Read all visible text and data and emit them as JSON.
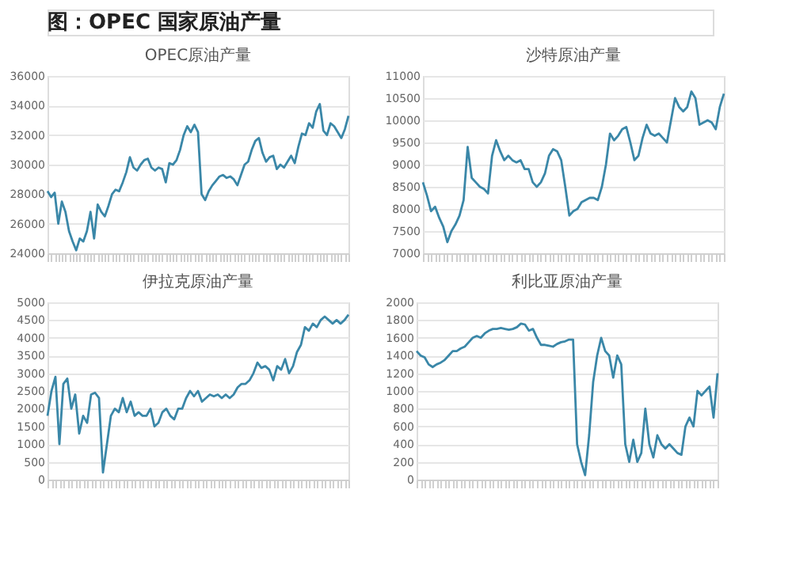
{
  "chart_data": [
    {
      "type": "other",
      "title": "图：OPEC 国家原油产量"
    },
    {
      "type": "line",
      "title": "OPEC原油产量",
      "tick_labels": "y",
      "grid": "y",
      "ylim": [
        24000,
        36000
      ],
      "yticks": [
        24000,
        26000,
        28000,
        30000,
        32000,
        34000,
        36000
      ],
      "categories": [
        null,
        null,
        null,
        null,
        null,
        null,
        null,
        null,
        null,
        null,
        null,
        null,
        null,
        null,
        null,
        null,
        null,
        null,
        null,
        null,
        null,
        null,
        null,
        null,
        null,
        null,
        null,
        null,
        null,
        null,
        null,
        null,
        null,
        null,
        null,
        null,
        null,
        null,
        null,
        null,
        null,
        null,
        null,
        null,
        null,
        null,
        null,
        null,
        null,
        null,
        null,
        null,
        null,
        null,
        null,
        null,
        null,
        null,
        null,
        null,
        null,
        null,
        null,
        null,
        null,
        null,
        null,
        null,
        null,
        null,
        null,
        null,
        null,
        null,
        null,
        null,
        null,
        null,
        null,
        null,
        null,
        null,
        null,
        null,
        null
      ],
      "series": [
        {
          "color": "#3a87a8",
          "values": [
            28200,
            27800,
            28100,
            26000,
            27500,
            26800,
            25500,
            24800,
            24200,
            25000,
            24800,
            25500,
            26800,
            25000,
            27300,
            26800,
            26500,
            27200,
            28000,
            28300,
            28200,
            28800,
            29500,
            30500,
            29800,
            29600,
            30000,
            30300,
            30400,
            29800,
            29600,
            29800,
            29700,
            28800,
            30100,
            30000,
            30300,
            31000,
            32000,
            32600,
            32200,
            32700,
            32200,
            28000,
            27600,
            28200,
            28600,
            28900,
            29200,
            29300,
            29100,
            29200,
            29000,
            28600,
            29300,
            30000,
            30200,
            31000,
            31600,
            31800,
            30800,
            30200,
            30500,
            30600,
            29700,
            30000,
            29800,
            30200,
            30600,
            30100,
            31200,
            32100,
            32000,
            32800,
            32500,
            33600,
            34100,
            32300,
            32000,
            32800,
            32600,
            32200,
            31800,
            32400,
            33300
          ]
        }
      ]
    },
    {
      "type": "line",
      "title": "沙特原油产量",
      "tick_labels": "y",
      "grid": "y",
      "ylim": [
        7000,
        11000
      ],
      "yticks": [
        7000,
        7500,
        8000,
        8500,
        9000,
        9500,
        10000,
        10500,
        11000
      ],
      "categories": [
        null,
        null,
        null,
        null,
        null,
        null,
        null,
        null,
        null,
        null,
        null,
        null,
        null,
        null,
        null,
        null,
        null,
        null,
        null,
        null,
        null,
        null,
        null,
        null,
        null,
        null,
        null,
        null,
        null,
        null,
        null,
        null,
        null,
        null,
        null,
        null,
        null,
        null,
        null,
        null,
        null,
        null,
        null,
        null,
        null,
        null,
        null,
        null,
        null,
        null,
        null,
        null,
        null,
        null,
        null,
        null,
        null,
        null,
        null,
        null,
        null,
        null,
        null,
        null,
        null,
        null,
        null,
        null,
        null,
        null,
        null,
        null,
        null,
        null,
        null
      ],
      "series": [
        {
          "color": "#3a87a8",
          "values": [
            8600,
            8300,
            7950,
            8050,
            7800,
            7600,
            7250,
            7500,
            7650,
            7850,
            8200,
            9400,
            8700,
            8600,
            8500,
            8450,
            8350,
            9200,
            9550,
            9300,
            9100,
            9200,
            9100,
            9050,
            9100,
            8900,
            8900,
            8600,
            8500,
            8600,
            8800,
            9200,
            9350,
            9300,
            9100,
            8500,
            7850,
            7950,
            8000,
            8150,
            8200,
            8250,
            8250,
            8200,
            8500,
            9000,
            9700,
            9550,
            9650,
            9800,
            9850,
            9500,
            9100,
            9200,
            9600,
            9900,
            9700,
            9650,
            9700,
            9600,
            9500,
            10000,
            10500,
            10300,
            10200,
            10300,
            10650,
            10500,
            9900,
            9950,
            10000,
            9950,
            9800,
            10300,
            10600
          ]
        }
      ]
    },
    {
      "type": "line",
      "title": "伊拉克原油产量",
      "tick_labels": "y",
      "grid": "y",
      "ylim": [
        0,
        5000
      ],
      "yticks": [
        0,
        500,
        1000,
        1500,
        2000,
        2500,
        3000,
        3500,
        4000,
        4500,
        5000
      ],
      "categories": [
        null,
        null,
        null,
        null,
        null,
        null,
        null,
        null,
        null,
        null,
        null,
        null,
        null,
        null,
        null,
        null,
        null,
        null,
        null,
        null,
        null,
        null,
        null,
        null,
        null,
        null,
        null,
        null,
        null,
        null,
        null,
        null,
        null,
        null,
        null,
        null,
        null,
        null,
        null,
        null,
        null,
        null,
        null,
        null,
        null,
        null,
        null,
        null,
        null,
        null,
        null,
        null,
        null,
        null,
        null,
        null,
        null,
        null,
        null,
        null,
        null,
        null,
        null,
        null,
        null,
        null,
        null,
        null,
        null,
        null,
        null,
        null,
        null,
        null,
        null,
        null,
        null
      ],
      "series": [
        {
          "color": "#3a87a8",
          "values": [
            1800,
            2500,
            2900,
            1000,
            2700,
            2850,
            2000,
            2400,
            1300,
            1800,
            1600,
            2400,
            2450,
            2300,
            200,
            1000,
            1800,
            2000,
            1900,
            2300,
            1900,
            2200,
            1800,
            1900,
            1800,
            1800,
            2000,
            1500,
            1600,
            1900,
            2000,
            1800,
            1700,
            2000,
            2000,
            2300,
            2500,
            2350,
            2500,
            2200,
            2300,
            2400,
            2350,
            2400,
            2300,
            2400,
            2300,
            2400,
            2600,
            2700,
            2700,
            2800,
            3000,
            3300,
            3150,
            3200,
            3100,
            2800,
            3200,
            3100,
            3400,
            3000,
            3200,
            3600,
            3800,
            4300,
            4200,
            4400,
            4300,
            4500,
            4600,
            4500,
            4400,
            4500,
            4400,
            4500,
            4650
          ]
        }
      ]
    },
    {
      "type": "line",
      "title": "利比亚原油产量",
      "tick_labels": "y",
      "grid": "y",
      "ylim": [
        0,
        2000
      ],
      "yticks": [
        0,
        200,
        400,
        600,
        800,
        1000,
        1200,
        1400,
        1600,
        1800,
        2000
      ],
      "categories": [
        null,
        null,
        null,
        null,
        null,
        null,
        null,
        null,
        null,
        null,
        null,
        null,
        null,
        null,
        null,
        null,
        null,
        null,
        null,
        null,
        null,
        null,
        null,
        null,
        null,
        null,
        null,
        null,
        null,
        null,
        null,
        null,
        null,
        null,
        null,
        null,
        null,
        null,
        null,
        null,
        null,
        null,
        null,
        null,
        null,
        null,
        null,
        null,
        null,
        null,
        null,
        null,
        null,
        null,
        null,
        null,
        null,
        null,
        null,
        null,
        null,
        null,
        null,
        null,
        null,
        null,
        null,
        null,
        null,
        null,
        null,
        null,
        null,
        null,
        null,
        null
      ],
      "series": [
        {
          "color": "#3a87a8",
          "values": [
            1450,
            1400,
            1380,
            1300,
            1270,
            1300,
            1320,
            1350,
            1400,
            1450,
            1450,
            1480,
            1500,
            1550,
            1600,
            1620,
            1600,
            1650,
            1680,
            1700,
            1700,
            1710,
            1700,
            1690,
            1700,
            1720,
            1760,
            1750,
            1680,
            1700,
            1600,
            1520,
            1520,
            1510,
            1500,
            1530,
            1550,
            1560,
            1580,
            1580,
            400,
            200,
            50,
            500,
            1100,
            1400,
            1600,
            1450,
            1400,
            1150,
            1400,
            1300,
            400,
            200,
            450,
            200,
            300,
            800,
            400,
            250,
            500,
            400,
            350,
            400,
            350,
            300,
            280,
            600,
            700,
            600,
            1000,
            950,
            1000,
            1050,
            700,
            1200
          ]
        }
      ]
    }
  ]
}
